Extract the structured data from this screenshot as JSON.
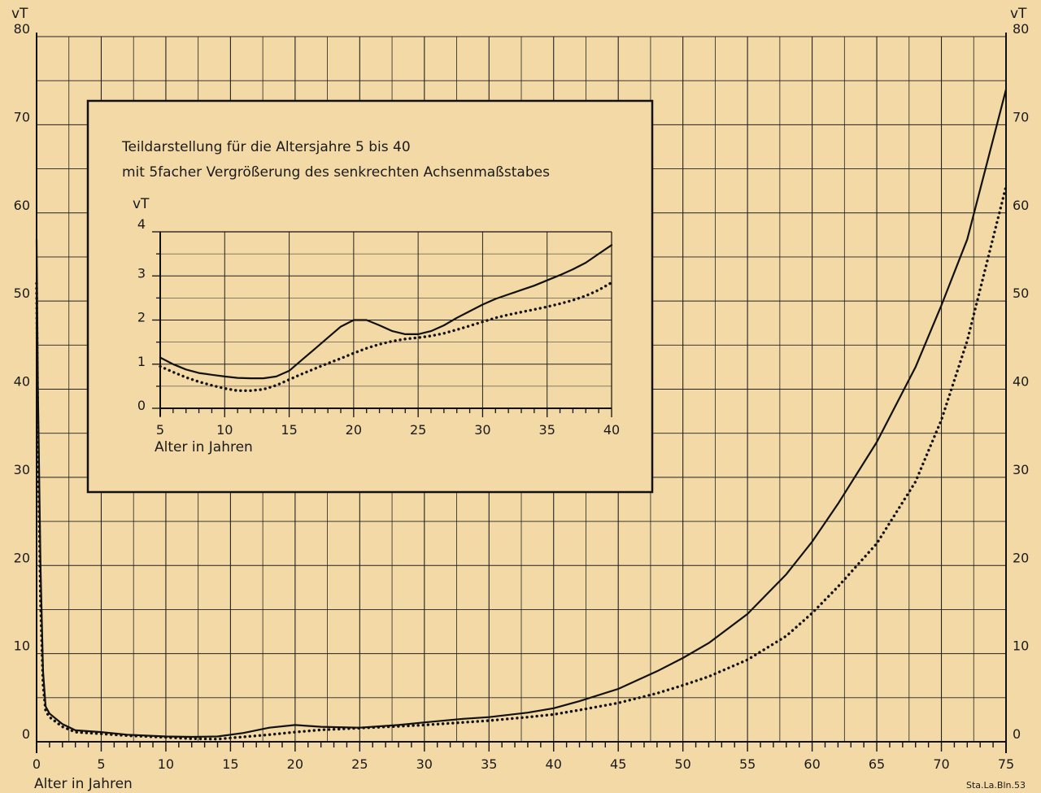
{
  "chart_data": [
    {
      "type": "line",
      "ylabel": "vT",
      "xlabel": "Alter in Jahren",
      "xlim": [
        0,
        75
      ],
      "ylim": [
        0,
        80
      ],
      "x_ticks": [
        0,
        5,
        10,
        15,
        20,
        25,
        30,
        35,
        40,
        45,
        50,
        55,
        60,
        65,
        70,
        75
      ],
      "y_ticks": [
        0,
        10,
        20,
        30,
        40,
        50,
        60,
        70,
        80
      ],
      "grid": true,
      "series": [
        {
          "style": "solid",
          "x": [
            0,
            0.1,
            0.3,
            0.5,
            0.7,
            1,
            2,
            3,
            5,
            7,
            10,
            12,
            14,
            16,
            18,
            20,
            22,
            25,
            28,
            30,
            33,
            35,
            38,
            40,
            42,
            45,
            48,
            50,
            52,
            55,
            58,
            60,
            62,
            65,
            68,
            70,
            72,
            75
          ],
          "y": [
            57,
            40,
            20,
            8,
            4,
            3.2,
            2,
            1.3,
            1.1,
            0.8,
            0.6,
            0.55,
            0.6,
            1.0,
            1.6,
            1.9,
            1.7,
            1.6,
            1.9,
            2.2,
            2.6,
            2.8,
            3.3,
            3.8,
            4.6,
            6,
            8,
            9.5,
            11.2,
            14.5,
            19,
            22.7,
            27,
            34,
            42.5,
            49.5,
            57,
            74
          ]
        },
        {
          "style": "dotted",
          "x": [
            0,
            0.1,
            0.3,
            0.5,
            0.7,
            1,
            2,
            3,
            5,
            7,
            10,
            12,
            14,
            16,
            18,
            20,
            22,
            25,
            28,
            30,
            33,
            35,
            38,
            40,
            42,
            45,
            48,
            50,
            52,
            55,
            58,
            60,
            62,
            65,
            68,
            70,
            72,
            75
          ],
          "y": [
            52,
            35,
            16,
            6.5,
            3.5,
            2.8,
            1.7,
            1.1,
            0.9,
            0.7,
            0.5,
            0.35,
            0.3,
            0.55,
            0.8,
            1.1,
            1.35,
            1.55,
            1.75,
            1.9,
            2.2,
            2.4,
            2.8,
            3.1,
            3.6,
            4.4,
            5.5,
            6.4,
            7.4,
            9.3,
            12,
            14.6,
            17.6,
            22.5,
            29.5,
            36.5,
            45.5,
            63
          ]
        }
      ]
    },
    {
      "type": "line",
      "title": "Teildarstellung für die Altersjahre 5 bis 40",
      "subtitle": "mit 5facher Vergrößerung des senkrechten Achsenmaßstabes",
      "ylabel": "vT",
      "xlabel": "Alter in Jahren",
      "xlim": [
        5,
        40
      ],
      "ylim": [
        0,
        4
      ],
      "x_ticks": [
        5,
        10,
        15,
        20,
        25,
        30,
        35,
        40
      ],
      "y_ticks": [
        0,
        1,
        2,
        3,
        4
      ],
      "grid": true,
      "series": [
        {
          "style": "solid",
          "x": [
            5,
            6,
            7,
            8,
            9,
            10,
            11,
            12,
            13,
            14,
            15,
            16,
            17,
            18,
            19,
            20,
            21,
            22,
            23,
            24,
            25,
            26,
            27,
            28,
            29,
            30,
            31,
            32,
            33,
            34,
            35,
            36,
            37,
            38,
            39,
            40
          ],
          "y": [
            1.15,
            1.0,
            0.88,
            0.8,
            0.76,
            0.72,
            0.69,
            0.68,
            0.68,
            0.72,
            0.85,
            1.1,
            1.35,
            1.6,
            1.85,
            2.0,
            2.0,
            1.88,
            1.75,
            1.68,
            1.68,
            1.75,
            1.88,
            2.05,
            2.2,
            2.35,
            2.48,
            2.58,
            2.68,
            2.78,
            2.9,
            3.02,
            3.15,
            3.3,
            3.5,
            3.7
          ]
        },
        {
          "style": "dotted",
          "x": [
            5,
            6,
            7,
            8,
            9,
            10,
            11,
            12,
            13,
            14,
            15,
            16,
            17,
            18,
            19,
            20,
            21,
            22,
            23,
            24,
            25,
            26,
            27,
            28,
            29,
            30,
            31,
            32,
            33,
            34,
            35,
            36,
            37,
            38,
            39,
            40
          ],
          "y": [
            0.95,
            0.82,
            0.7,
            0.6,
            0.52,
            0.45,
            0.4,
            0.4,
            0.43,
            0.52,
            0.65,
            0.78,
            0.9,
            1.02,
            1.13,
            1.25,
            1.36,
            1.45,
            1.52,
            1.57,
            1.6,
            1.64,
            1.7,
            1.78,
            1.87,
            1.96,
            2.05,
            2.12,
            2.18,
            2.24,
            2.3,
            2.37,
            2.45,
            2.55,
            2.68,
            2.85
          ]
        }
      ]
    }
  ],
  "credit": "Sta.La.Bln.53"
}
